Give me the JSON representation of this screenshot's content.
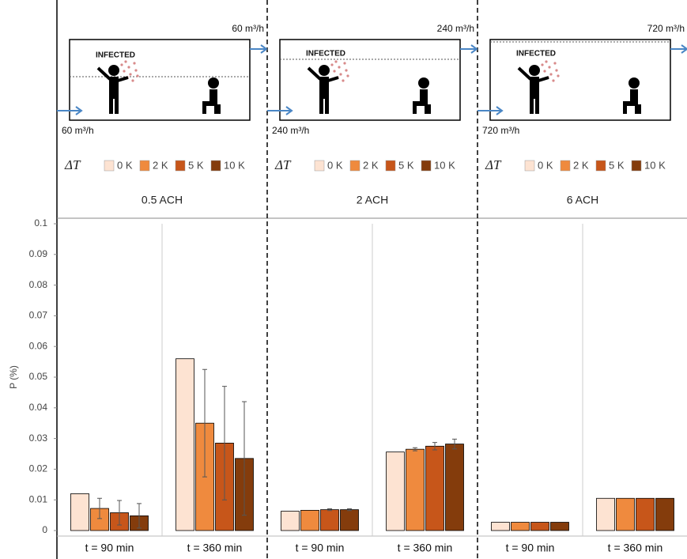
{
  "chart_data": [
    {
      "type": "bar",
      "title": "0.5 ACH",
      "inflow": "60 m³/h",
      "outflow": "60 m³/h",
      "room_label": "INFECTED",
      "legend_title": "ΔT",
      "categories": [
        "t = 90 min",
        "t = 360 min"
      ],
      "ylabel": "P (%)",
      "ylim": [
        0,
        0.1
      ],
      "yticks": [
        0,
        0.01,
        0.02,
        0.03,
        0.04,
        0.05,
        0.06,
        0.07,
        0.08,
        0.09,
        0.1
      ],
      "series": [
        {
          "name": "0 K",
          "color": "#fde3d2",
          "values": [
            0.012,
            0.056
          ],
          "errors": [
            null,
            null
          ]
        },
        {
          "name": "2 K",
          "color": "#ef8a3e",
          "values": [
            0.0072,
            0.035
          ],
          "errors": [
            0.0033,
            0.0175
          ]
        },
        {
          "name": "5 K",
          "color": "#c7561a",
          "values": [
            0.0058,
            0.0285
          ],
          "errors": [
            0.004,
            0.0185
          ]
        },
        {
          "name": "10 K",
          "color": "#843c0c",
          "values": [
            0.0048,
            0.0235
          ],
          "errors": [
            0.004,
            0.0185
          ]
        }
      ]
    },
    {
      "type": "bar",
      "title": "2 ACH",
      "inflow": "240 m³/h",
      "outflow": "240 m³/h",
      "room_label": "INFECTED",
      "legend_title": "ΔT",
      "categories": [
        "t = 90 min",
        "t = 360 min"
      ],
      "ylim": [
        0,
        0.1
      ],
      "series": [
        {
          "name": "0 K",
          "color": "#fde3d2",
          "values": [
            0.0063,
            0.0256
          ],
          "errors": [
            null,
            null
          ]
        },
        {
          "name": "2 K",
          "color": "#ef8a3e",
          "values": [
            0.0066,
            0.0265
          ],
          "errors": [
            null,
            0.0005
          ]
        },
        {
          "name": "5 K",
          "color": "#c7561a",
          "values": [
            0.0068,
            0.0275
          ],
          "errors": [
            0.0003,
            0.0012
          ]
        },
        {
          "name": "10 K",
          "color": "#843c0c",
          "values": [
            0.0068,
            0.0282
          ],
          "errors": [
            0.0003,
            0.0016
          ]
        }
      ]
    },
    {
      "type": "bar",
      "title": "6 ACH",
      "inflow": "720 m³/h",
      "outflow": "720 m³/h",
      "room_label": "INFECTED",
      "legend_title": "ΔT",
      "categories": [
        "t = 90 min",
        "t = 360 min"
      ],
      "ylim": [
        0,
        0.1
      ],
      "series": [
        {
          "name": "0 K",
          "color": "#fde3d2",
          "values": [
            0.0027,
            0.0105
          ],
          "errors": [
            null,
            null
          ]
        },
        {
          "name": "2 K",
          "color": "#ef8a3e",
          "values": [
            0.0027,
            0.0105
          ],
          "errors": [
            null,
            null
          ]
        },
        {
          "name": "5 K",
          "color": "#c7561a",
          "values": [
            0.0027,
            0.0105
          ],
          "errors": [
            null,
            null
          ]
        },
        {
          "name": "10 K",
          "color": "#843c0c",
          "values": [
            0.0027,
            0.0105
          ],
          "errors": [
            null,
            null
          ]
        }
      ]
    }
  ]
}
